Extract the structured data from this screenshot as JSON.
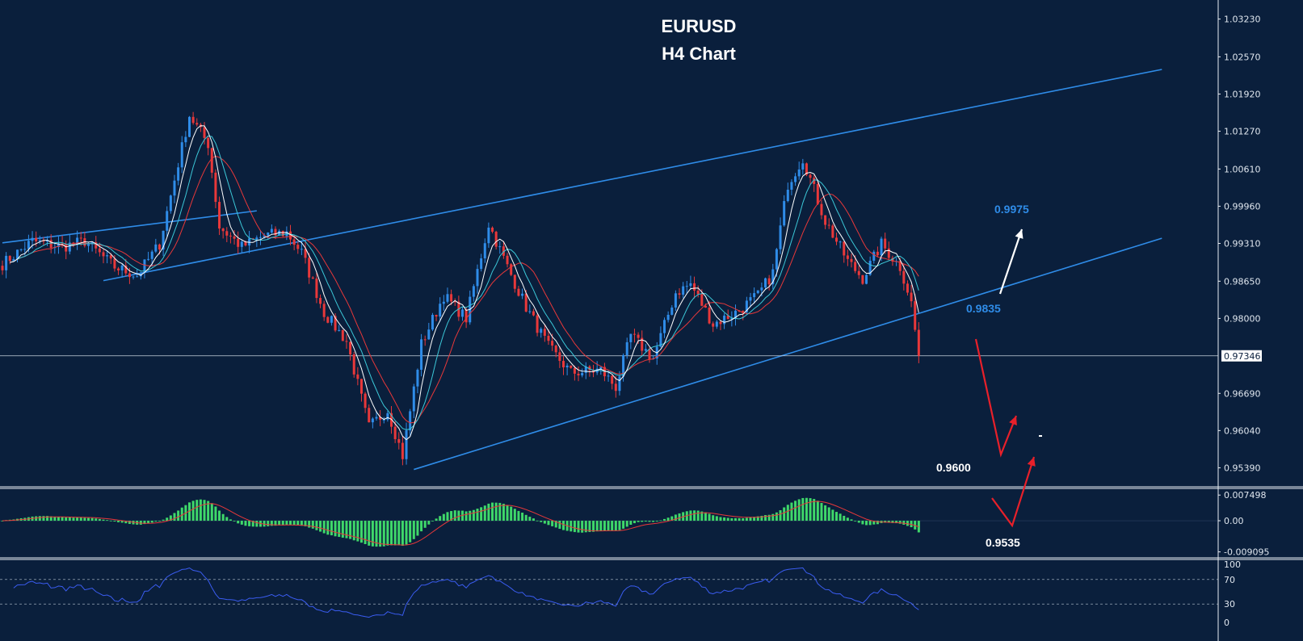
{
  "chart_data": {
    "type": "candlestick",
    "title": "EURUSD",
    "subtitle": "H4 Chart",
    "price_axis": {
      "ticks": [
        "1.03230",
        "1.02570",
        "1.01920",
        "1.01270",
        "1.00610",
        "0.99960",
        "0.99310",
        "0.98650",
        "0.98000",
        "0.97346",
        "0.96690",
        "0.96040",
        "0.95390"
      ],
      "range": [
        0.951,
        1.0345
      ],
      "current_price": "0.97346",
      "current_price_value": 0.97346
    },
    "macd_axis": {
      "ticks": [
        "0.007498",
        "0.00",
        "-0.009095"
      ],
      "range": [
        -0.0106,
        0.0092
      ]
    },
    "rsi_axis": {
      "ticks": [
        "100",
        "70",
        "30",
        "0"
      ],
      "range": [
        0,
        100
      ],
      "levels": [
        70,
        30
      ]
    },
    "anchors": [
      {
        "i": 0,
        "p": 0.9895
      },
      {
        "i": 8,
        "p": 0.9935
      },
      {
        "i": 16,
        "p": 0.9925
      },
      {
        "i": 22,
        "p": 0.9935
      },
      {
        "i": 30,
        "p": 0.989
      },
      {
        "i": 36,
        "p": 0.9875
      },
      {
        "i": 42,
        "p": 0.993
      },
      {
        "i": 50,
        "p": 1.0155
      },
      {
        "i": 55,
        "p": 1.0105
      },
      {
        "i": 58,
        "p": 0.996
      },
      {
        "i": 64,
        "p": 0.9925
      },
      {
        "i": 70,
        "p": 0.9945
      },
      {
        "i": 76,
        "p": 0.995
      },
      {
        "i": 80,
        "p": 0.9915
      },
      {
        "i": 86,
        "p": 0.981
      },
      {
        "i": 92,
        "p": 0.976
      },
      {
        "i": 98,
        "p": 0.961
      },
      {
        "i": 103,
        "p": 0.964
      },
      {
        "i": 107,
        "p": 0.956
      },
      {
        "i": 112,
        "p": 0.9755
      },
      {
        "i": 118,
        "p": 0.984
      },
      {
        "i": 124,
        "p": 0.98
      },
      {
        "i": 130,
        "p": 0.9965
      },
      {
        "i": 135,
        "p": 0.989
      },
      {
        "i": 140,
        "p": 0.982
      },
      {
        "i": 146,
        "p": 0.975
      },
      {
        "i": 152,
        "p": 0.9705
      },
      {
        "i": 160,
        "p": 0.971
      },
      {
        "i": 164,
        "p": 0.968
      },
      {
        "i": 168,
        "p": 0.977
      },
      {
        "i": 174,
        "p": 0.973
      },
      {
        "i": 180,
        "p": 0.9845
      },
      {
        "i": 184,
        "p": 0.986
      },
      {
        "i": 190,
        "p": 0.979
      },
      {
        "i": 196,
        "p": 0.981
      },
      {
        "i": 202,
        "p": 0.984
      },
      {
        "i": 206,
        "p": 0.988
      },
      {
        "i": 210,
        "p": 1.0035
      },
      {
        "i": 214,
        "p": 1.008
      },
      {
        "i": 220,
        "p": 0.997
      },
      {
        "i": 226,
        "p": 0.99
      },
      {
        "i": 230,
        "p": 0.987
      },
      {
        "i": 235,
        "p": 0.993
      },
      {
        "i": 240,
        "p": 0.989
      },
      {
        "i": 243,
        "p": 0.983
      },
      {
        "i": 244,
        "p": 0.978
      },
      {
        "i": 245,
        "p": 0.97346
      }
    ],
    "trendlines": [
      {
        "from": {
          "i": 27,
          "p": 0.9866
        },
        "to": {
          "i": 310,
          "p": 1.0235
        },
        "color": "#2f8ce8"
      },
      {
        "from": {
          "i": 110,
          "p": 0.9536
        },
        "to": {
          "i": 310,
          "p": 0.994
        },
        "color": "#2f8ce8"
      },
      {
        "from": {
          "i": 0,
          "p": 0.9932
        },
        "to": {
          "i": 68,
          "p": 0.9988
        },
        "color": "#2f8ce8"
      }
    ],
    "annotations": [
      {
        "text": "0.9975",
        "color": "#2f8ce8"
      },
      {
        "text": "0.9835",
        "color": "#2f8ce8"
      },
      {
        "text": "0.9600",
        "color": "#ffffff"
      },
      {
        "text": "0.9535",
        "color": "#ffffff"
      }
    ],
    "colors": {
      "background": "#0a1f3c",
      "bull": "#2f8ce8",
      "bear": "#e8383a",
      "ma_fast": "#ffffff",
      "ma_mid": "#3cc8d8",
      "ma_slow": "#e8383a",
      "macd_hist": "#3fd86a",
      "macd_signal": "#e8383a",
      "rsi": "#3a5cf0",
      "trendline": "#2f8ce8",
      "arrow_up": "#ffffff",
      "arrow_down": "#e8202a"
    }
  }
}
